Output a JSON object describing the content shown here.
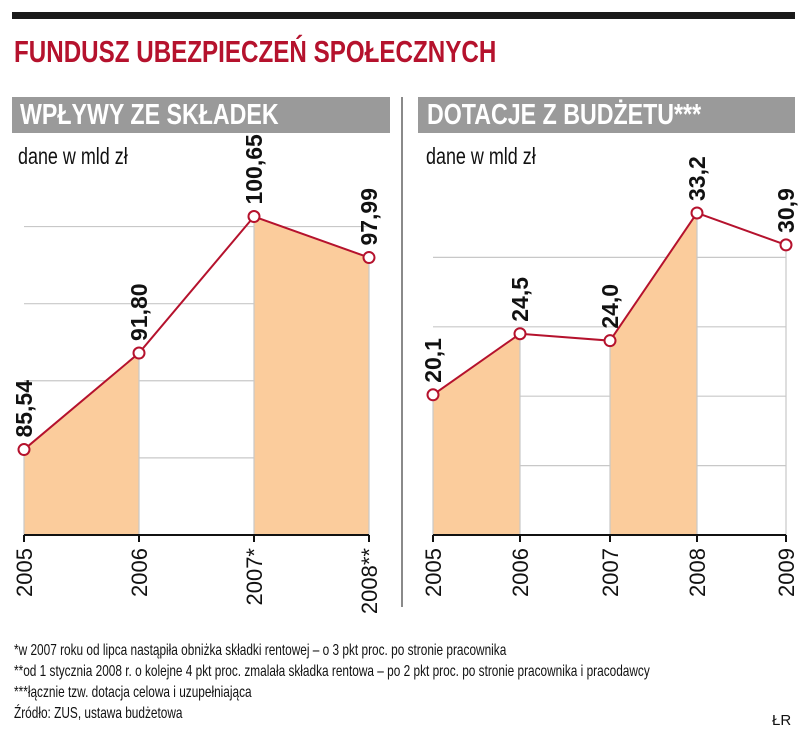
{
  "header": {
    "title": "FUNDUSZ UBEZPIECZEŃ SPOŁECZNYCH"
  },
  "chart_data": [
    {
      "type": "area",
      "title": "WPŁYWY ZE SKŁADEK",
      "subtitle": "dane w mld zł",
      "categories": [
        "2005",
        "2006",
        "2007*",
        "2008**"
      ],
      "values": [
        85.54,
        91.8,
        100.65,
        97.99
      ],
      "value_labels": [
        "85,54",
        "91,80",
        "100,65",
        "97,99"
      ],
      "ylim": [
        80,
        102.5
      ],
      "grid": true,
      "shaded_segments": [
        [
          0,
          1
        ],
        [
          2,
          3
        ]
      ],
      "colors": {
        "line": "#b5122d",
        "fill": "#fbcc9c",
        "grid": "#c8c8c8",
        "axis": "#111111"
      }
    },
    {
      "type": "area",
      "title": "DOTACJE Z BUDŻETU***",
      "subtitle": "dane w mld zł",
      "categories": [
        "2005",
        "2006",
        "2007",
        "2008",
        "2009"
      ],
      "values": [
        20.1,
        24.5,
        24.0,
        33.2,
        30.9
      ],
      "value_labels": [
        "20,1",
        "24,5",
        "24,0",
        "33,2",
        "30,9"
      ],
      "ylim": [
        10,
        35
      ],
      "grid": true,
      "shaded_segments": [
        [
          0,
          1
        ],
        [
          2,
          3
        ]
      ],
      "colors": {
        "line": "#b5122d",
        "fill": "#fbcc9c",
        "grid": "#c8c8c8",
        "axis": "#111111"
      }
    }
  ],
  "footnotes": [
    "*w 2007 roku od lipca nastąpiła obniżka składki rentowej – o 3 pkt proc. po stronie pracownika",
    "**od 1 stycznia 2008 r. o kolejne 4 pkt proc. zmalała składka rentowa – po 2 pkt proc. po stronie pracownika i pracodawcy",
    "***łącznie tzw. dotacja celowa i uzupełniająca",
    "Źródło: ZUS, ustawa budżetowa"
  ],
  "credit": "ŁR"
}
